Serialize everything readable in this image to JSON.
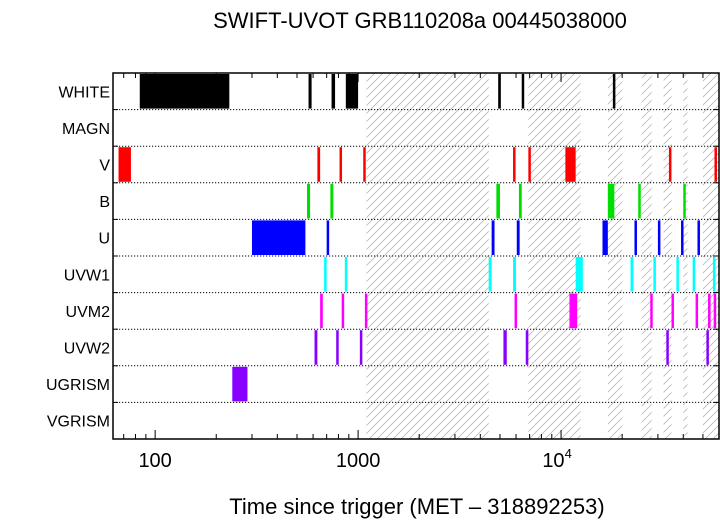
{
  "chart_data": {
    "type": "timeline",
    "title": "SWIFT-UVOT GRB110208a 00445038000",
    "xlabel": "Time since trigger (MET – 318892253)",
    "x_scale": "log",
    "xlim": [
      62,
      60000
    ],
    "x_ticks": [
      {
        "value": 100,
        "label": "100"
      },
      {
        "value": 1000,
        "label": "1000"
      },
      {
        "value": 10000,
        "label": "10",
        "sup": "4"
      }
    ],
    "rows": [
      "WHITE",
      "MAGN",
      "V",
      "B",
      "U",
      "UVW1",
      "UVM2",
      "UVW2",
      "UGRISM",
      "VGRISM"
    ],
    "colors": {
      "WHITE": "#000000",
      "MAGN": "#000000",
      "V": "#ff0000",
      "B": "#00dd00",
      "U": "#0000ff",
      "UVW1": "#00ffff",
      "UVM2": "#ff00ff",
      "UVW2": "#8800ff",
      "UGRISM": "#8800ff",
      "VGRISM": "#000000"
    },
    "hatched_intervals": [
      [
        1100,
        4400
      ],
      [
        6900,
        12500
      ],
      [
        17000,
        20000
      ],
      [
        25000,
        28000
      ],
      [
        32000,
        35000
      ],
      [
        40000,
        42000
      ],
      [
        50000,
        60000
      ]
    ],
    "exposures": {
      "WHITE": [
        [
          84,
          232
        ],
        [
          570,
          590
        ],
        [
          740,
          770
        ],
        [
          870,
          1000
        ],
        [
          4900,
          5050
        ],
        [
          6400,
          6550
        ],
        [
          18000,
          18400
        ]
      ],
      "MAGN": [],
      "V": [
        [
          66,
          76
        ],
        [
          630,
          650
        ],
        [
          810,
          830
        ],
        [
          1060,
          1080
        ],
        [
          5800,
          5950
        ],
        [
          6900,
          7000
        ],
        [
          10500,
          11800
        ],
        [
          34000,
          34700
        ],
        [
          57000,
          58500
        ]
      ],
      "B": [
        [
          560,
          580
        ],
        [
          730,
          755
        ],
        [
          4800,
          5000
        ],
        [
          6200,
          6400
        ],
        [
          17000,
          18300
        ],
        [
          24000,
          24700
        ],
        [
          40000,
          41000
        ]
      ],
      "U": [
        [
          300,
          550
        ],
        [
          700,
          720
        ],
        [
          4550,
          4700
        ],
        [
          6050,
          6250
        ],
        [
          16000,
          17000
        ],
        [
          23000,
          23600
        ],
        [
          30000,
          30600
        ],
        [
          39000,
          39600
        ],
        [
          47000,
          47700
        ],
        [
          60000,
          60500
        ]
      ],
      "UVW1": [
        [
          680,
          700
        ],
        [
          860,
          880
        ],
        [
          4400,
          4550
        ],
        [
          5800,
          6000
        ],
        [
          11800,
          12800
        ],
        [
          22000,
          22700
        ],
        [
          28500,
          29200
        ],
        [
          37000,
          37700
        ],
        [
          44500,
          45200
        ],
        [
          56000,
          57000
        ]
      ],
      "UVM2": [
        [
          650,
          670
        ],
        [
          830,
          850
        ],
        [
          1080,
          1100
        ],
        [
          5900,
          6050
        ],
        [
          11000,
          12000
        ],
        [
          27500,
          28200
        ],
        [
          35000,
          35700
        ],
        [
          46000,
          46700
        ],
        [
          53000,
          53800
        ],
        [
          56500,
          57500
        ]
      ],
      "UVW2": [
        [
          610,
          630
        ],
        [
          780,
          800
        ],
        [
          1020,
          1040
        ],
        [
          5200,
          5400
        ],
        [
          6700,
          6900
        ],
        [
          33000,
          33800
        ],
        [
          52000,
          52800
        ]
      ],
      "UGRISM": [
        [
          240,
          285
        ]
      ],
      "VGRISM": []
    },
    "grid": false,
    "legend": "none"
  }
}
